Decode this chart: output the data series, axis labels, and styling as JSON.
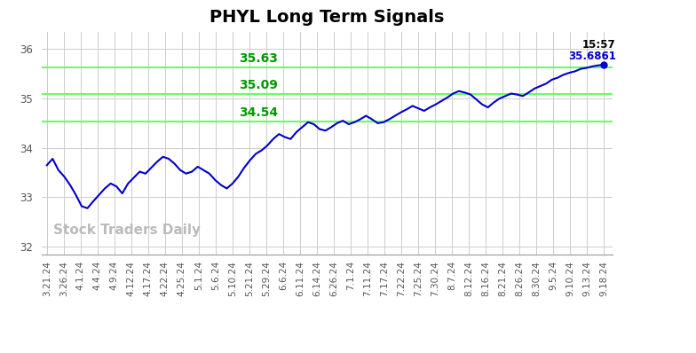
{
  "title": "PHYL Long Term Signals",
  "title_fontsize": 14,
  "title_fontweight": "bold",
  "background_color": "#ffffff",
  "line_color": "#0000cc",
  "line_width": 1.5,
  "hline_color": "#66ff66",
  "hline_values": [
    34.54,
    35.09,
    35.63
  ],
  "hline_labels": [
    "34.54",
    "35.09",
    "35.63"
  ],
  "hline_label_color": "#009900",
  "hline_label_fontsize": 10,
  "endpoint_label_time": "15:57",
  "endpoint_label_price": "35.6861",
  "endpoint_color": "#0000cc",
  "watermark": "Stock Traders Daily",
  "watermark_color": "#bbbbbb",
  "watermark_fontsize": 11,
  "ylim": [
    31.85,
    36.35
  ],
  "yticks": [
    32,
    33,
    34,
    35,
    36
  ],
  "x_labels": [
    "3.21.24",
    "3.26.24",
    "4.1.24",
    "4.4.24",
    "4.9.24",
    "4.12.24",
    "4.17.24",
    "4.22.24",
    "4.25.24",
    "5.1.24",
    "5.6.24",
    "5.10.24",
    "5.21.24",
    "5.29.24",
    "6.6.24",
    "6.11.24",
    "6.14.24",
    "6.26.24",
    "7.1.24",
    "7.11.24",
    "7.17.24",
    "7.22.24",
    "7.25.24",
    "7.30.24",
    "8.7.24",
    "8.12.24",
    "8.16.24",
    "8.21.24",
    "8.26.24",
    "8.30.24",
    "9.5.24",
    "9.10.24",
    "9.13.24",
    "9.18.24"
  ],
  "y_values": [
    33.65,
    33.78,
    33.55,
    33.42,
    33.25,
    33.05,
    32.82,
    32.78,
    32.92,
    33.05,
    33.18,
    33.28,
    33.22,
    33.08,
    33.28,
    33.4,
    33.52,
    33.48,
    33.6,
    33.72,
    33.82,
    33.78,
    33.68,
    33.55,
    33.48,
    33.52,
    33.62,
    33.55,
    33.48,
    33.35,
    33.25,
    33.18,
    33.28,
    33.42,
    33.6,
    33.75,
    33.88,
    33.95,
    34.05,
    34.18,
    34.28,
    34.22,
    34.18,
    34.32,
    34.42,
    34.52,
    34.48,
    34.38,
    34.35,
    34.42,
    34.5,
    34.55,
    34.48,
    34.52,
    34.58,
    34.65,
    34.58,
    34.5,
    34.52,
    34.58,
    34.65,
    34.72,
    34.78,
    34.85,
    34.8,
    34.75,
    34.82,
    34.88,
    34.95,
    35.02,
    35.1,
    35.15,
    35.12,
    35.08,
    34.98,
    34.88,
    34.82,
    34.92,
    35.0,
    35.05,
    35.1,
    35.08,
    35.05,
    35.12,
    35.2,
    35.25,
    35.3,
    35.38,
    35.42,
    35.48,
    35.52,
    35.55,
    35.6,
    35.62,
    35.65,
    35.67,
    35.6861
  ],
  "grid_color": "#cccccc",
  "grid_linewidth": 0.7,
  "tick_fontsize": 7.5,
  "tick_color": "#555555"
}
